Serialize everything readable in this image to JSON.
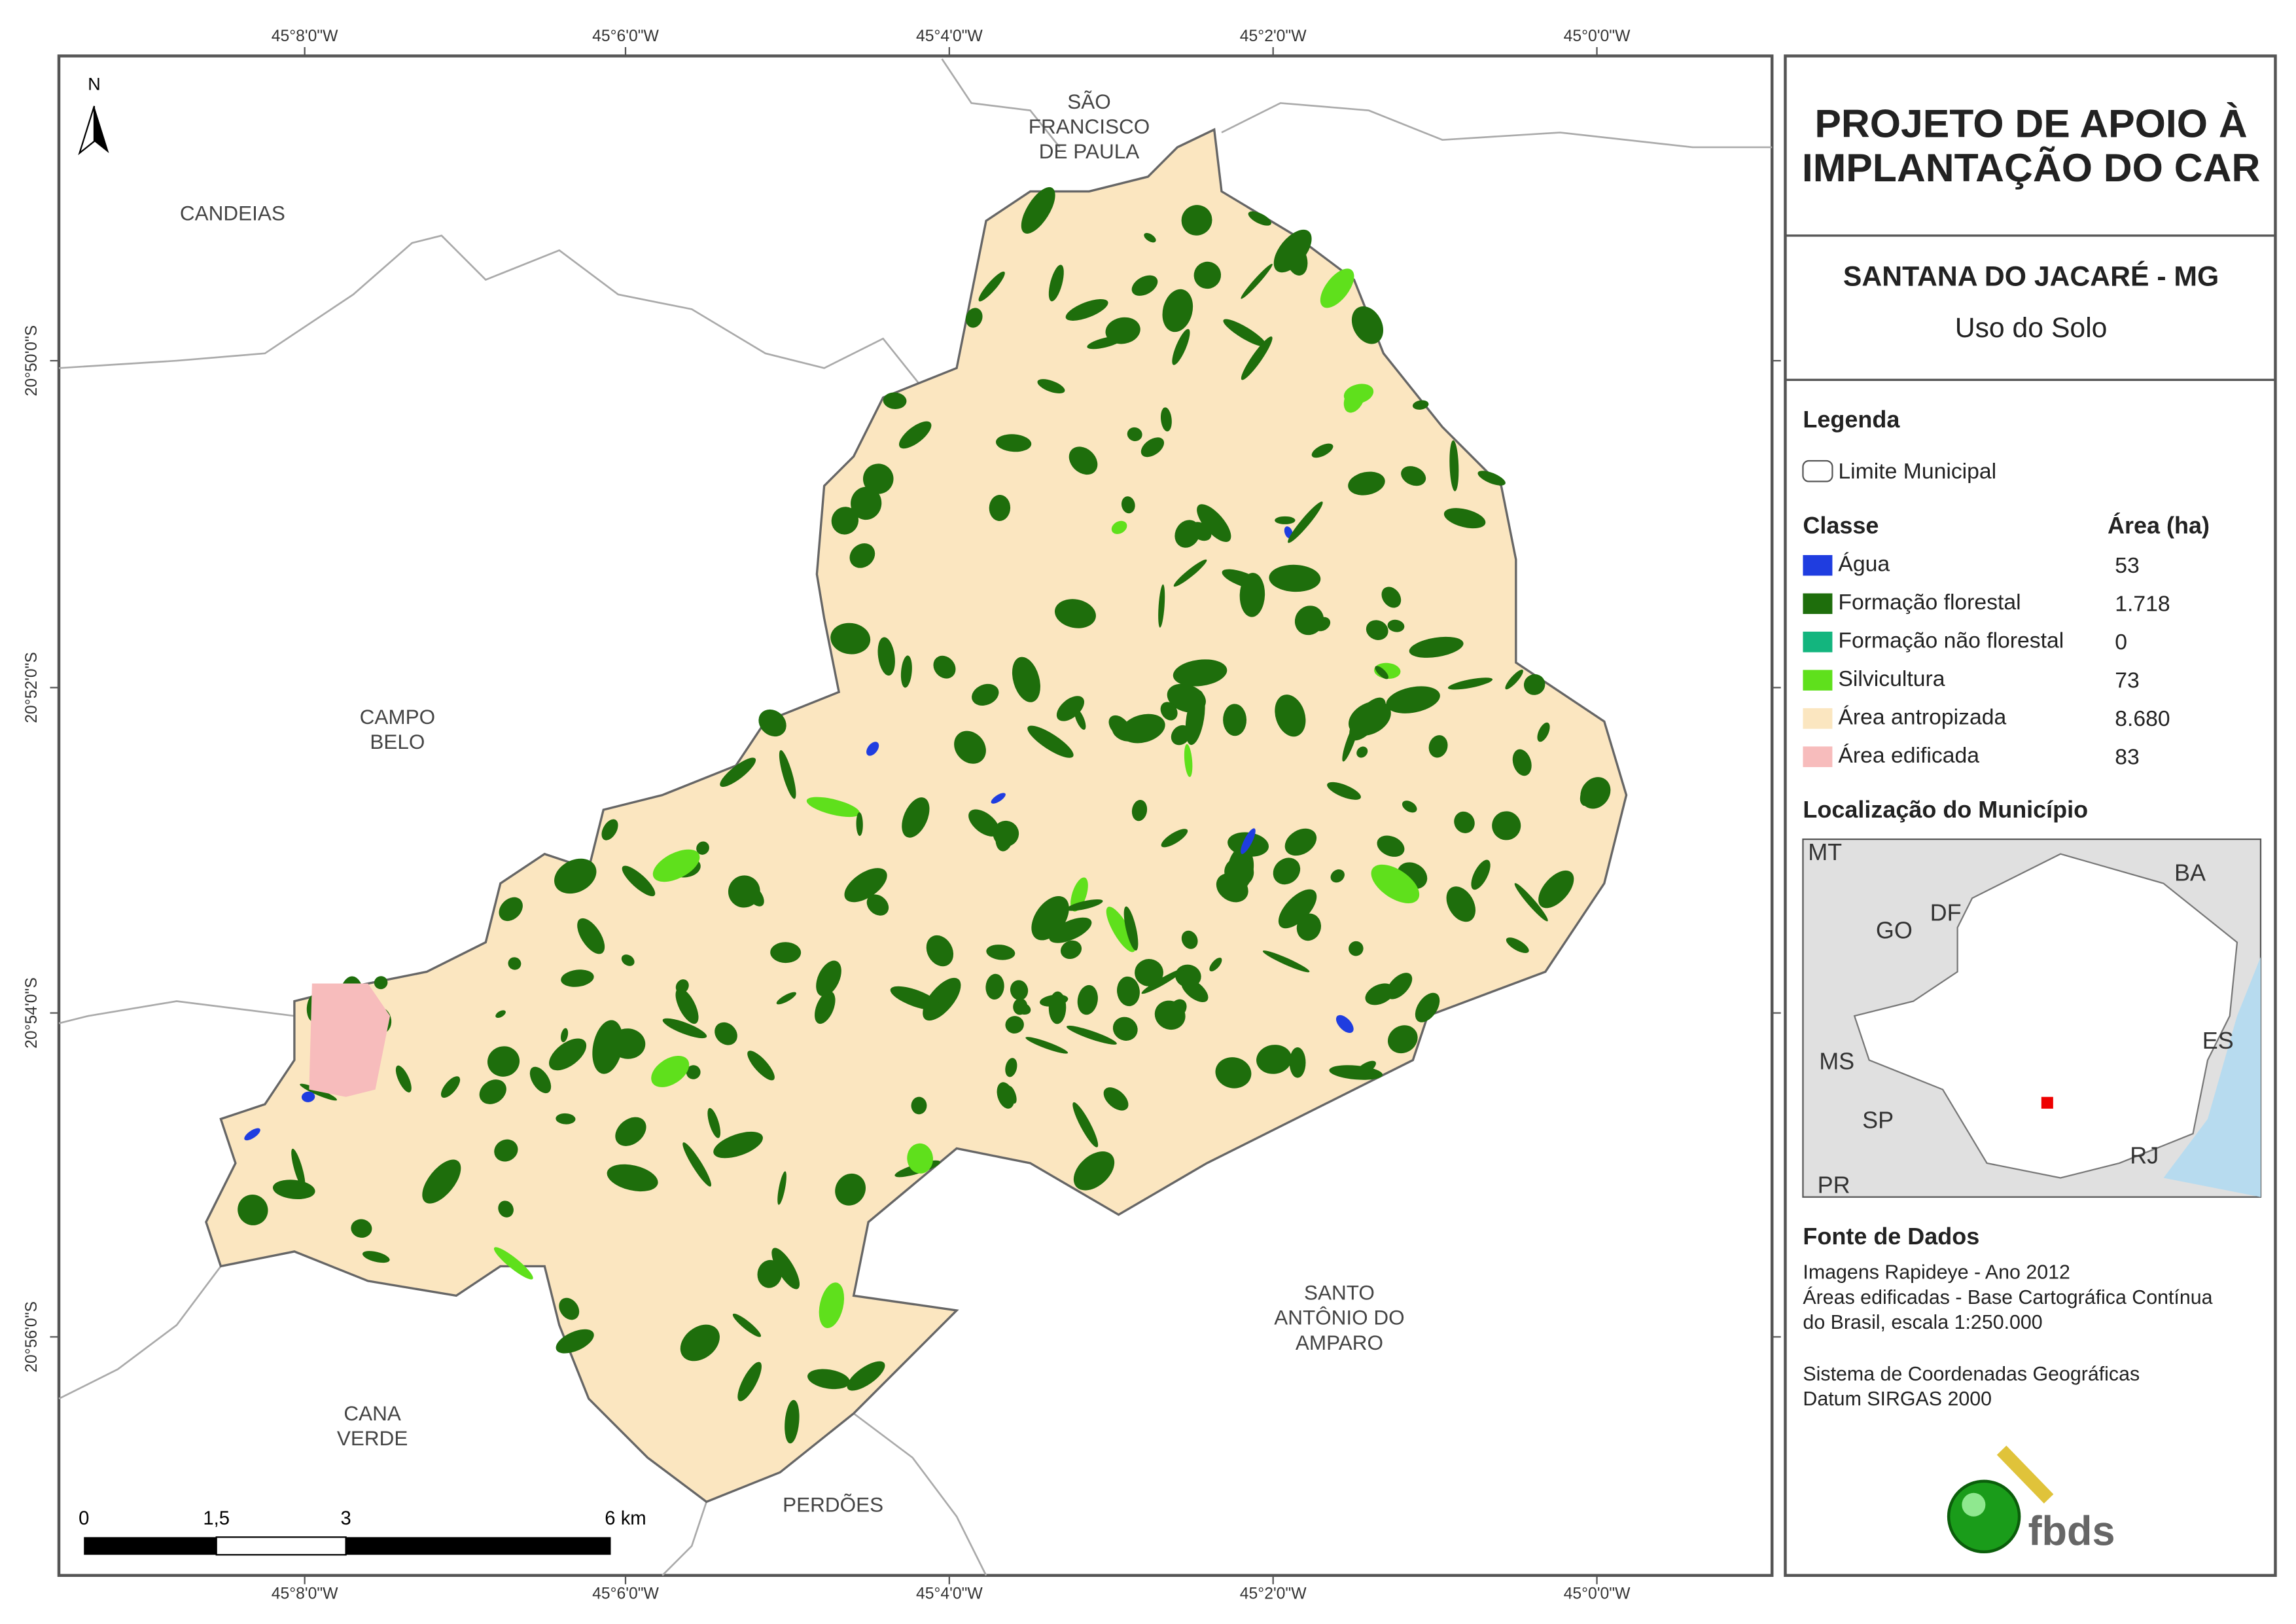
{
  "title_lines": [
    "PROJETO DE APOIO À",
    "IMPLANTAÇÃO DO CAR"
  ],
  "municipality": "SANTANA DO JACARÉ - MG",
  "subtitle": "Uso do Solo",
  "legend": {
    "title": "Legenda",
    "boundary": "Limite Municipal",
    "class_header": "Classe",
    "area_header": "Área (ha)",
    "classes": [
      {
        "name": "Água",
        "area": "53",
        "color": "#1f3de0"
      },
      {
        "name": "Formação florestal",
        "area": "1.718",
        "color": "#1e6e0c"
      },
      {
        "name": "Formação não florestal",
        "area": "0",
        "color": "#13b57e"
      },
      {
        "name": "Silvicultura",
        "area": "73",
        "color": "#5fe01c"
      },
      {
        "name": "Área antropizada",
        "area": "8.680",
        "color": "#fbe6c0"
      },
      {
        "name": "Área edificada",
        "area": "83",
        "color": "#f7bcbc"
      }
    ]
  },
  "location": {
    "title": "Localização do Município",
    "labels": [
      "MT",
      "BA",
      "GO",
      "DF",
      "ES",
      "MS",
      "SP",
      "RJ",
      "PR"
    ]
  },
  "sources": {
    "title": "Fonte de Dados",
    "lines": [
      "Imagens Rapideye - Ano 2012",
      "Áreas edificadas - Base Cartográfica Contínua",
      "do Brasil, escala 1:250.000",
      "Sistema de Coordenadas Geográficas",
      "Datum SIRGAS 2000"
    ]
  },
  "map": {
    "north": "N",
    "x_ticks": [
      "45°8'0\"W",
      "45°6'0\"W",
      "45°4'0\"W",
      "45°2'0\"W",
      "45°0'0\"W"
    ],
    "y_ticks": [
      "20°50'0\"S",
      "20°52'0\"S",
      "20°54'0\"S",
      "20°56'0\"S"
    ],
    "places": [
      [
        "CANDEIAS"
      ],
      [
        "SÃO",
        "FRANCISCO",
        "DE PAULA"
      ],
      [
        "CAMPO",
        "BELO"
      ],
      [
        "SANTO",
        "ANTÔNIO DO",
        "AMPARO"
      ],
      [
        "CANA",
        "VERDE"
      ],
      [
        "PERDÕES"
      ]
    ],
    "scale_labels": [
      "0",
      "1,5",
      "3",
      "6 km"
    ]
  },
  "logo": "fbds"
}
